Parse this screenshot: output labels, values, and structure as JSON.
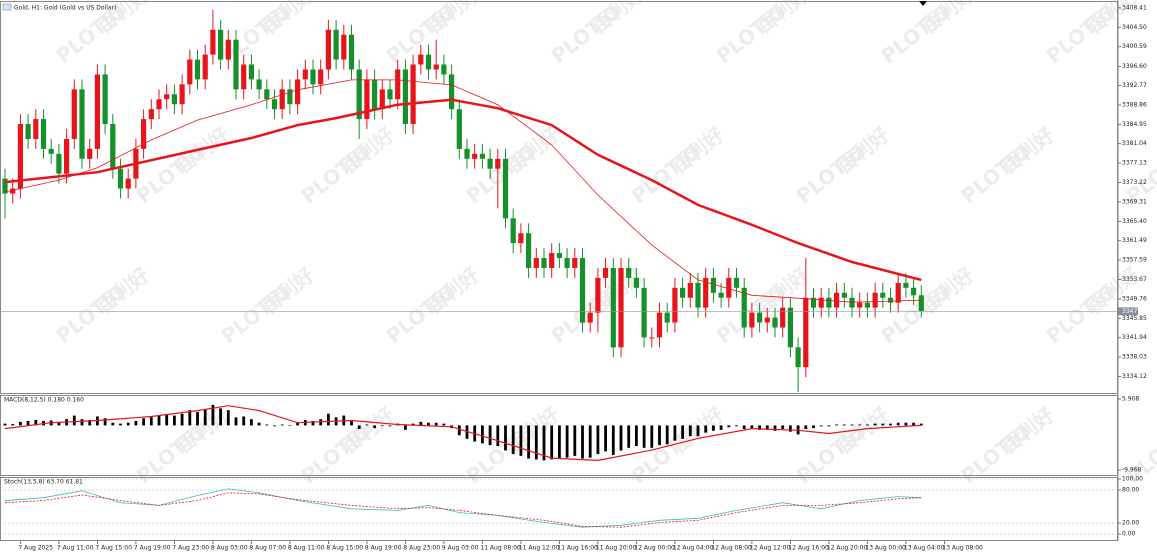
{
  "watermark": [
    "PLOTIO",
    "百利好"
  ],
  "chart_data": [
    {
      "type": "candlestick",
      "title": "Gold, H1: Gold (Gold vs US Dollar)",
      "up_color": "#e8141c",
      "down_color": "#15902a",
      "categories": [
        null,
        null,
        "7 Aug 2025",
        null,
        null,
        null,
        null,
        "7 Aug 11:00",
        null,
        null,
        null,
        null,
        "7 Aug 15:00",
        null,
        null,
        null,
        null,
        "7 Aug 19:00",
        null,
        null,
        null,
        null,
        "7 Aug 23:00",
        null,
        null,
        null,
        null,
        "8 Aug 03:00",
        null,
        null,
        null,
        null,
        "8 Aug 07:00",
        null,
        null,
        null,
        null,
        "8 Aug 11:00",
        null,
        null,
        null,
        null,
        "8 Aug 15:00",
        null,
        null,
        null,
        null,
        "8 Aug 19:00",
        null,
        null,
        null,
        null,
        "8 Aug 23:00",
        null,
        null,
        null,
        null,
        "9 Aug 03:00",
        null,
        null,
        null,
        null,
        "11 Aug 08:00",
        null,
        null,
        null,
        null,
        "11 Aug 12:00",
        null,
        null,
        null,
        null,
        "11 Aug 16:00",
        null,
        null,
        null,
        null,
        "11 Aug 20:00",
        null,
        null,
        null,
        null,
        "12 Aug 00:00",
        null,
        null,
        null,
        null,
        "12 Aug 04:00",
        null,
        null,
        null,
        null,
        "12 Aug 08:00",
        null,
        null,
        null,
        null,
        "12 Aug 12:00",
        null,
        null,
        null,
        null,
        "12 Aug 16:00",
        null,
        null,
        null,
        null,
        "12 Aug 20:00",
        null,
        null,
        null,
        null,
        "13 Aug 00:00",
        null,
        null,
        null,
        null,
        "13 Aug 04:00",
        null,
        null,
        null,
        null,
        "13 Aug 08:00"
      ],
      "open": [
        3374,
        3371,
        3372,
        3385,
        3382,
        3386,
        3380,
        3379,
        3375,
        3382,
        3392,
        3378,
        3380,
        3395,
        3385,
        3376,
        3372,
        3374,
        3380,
        3386,
        3388,
        3390,
        3391,
        3389,
        3393,
        3398,
        3394,
        3399,
        3404,
        3398,
        3402,
        3392,
        3397,
        3394,
        3392,
        3390,
        3388,
        3392,
        3389,
        3394,
        3396,
        3393,
        3396,
        3404,
        3398,
        3403,
        3396,
        3386,
        3394,
        3388,
        3392,
        3390,
        3396,
        3385,
        3397,
        3399,
        3396,
        3397,
        3395,
        3388,
        3380,
        3378,
        3379,
        3378,
        3376,
        3378,
        3366,
        3361,
        3363,
        3356,
        3358,
        3356,
        3359,
        3358,
        3356,
        3358,
        3345,
        3347,
        3354,
        3356,
        3340,
        3356,
        3354,
        3352,
        3342,
        3342,
        3347,
        3345,
        3352,
        3350,
        3353,
        3348,
        3354,
        3351,
        3350,
        3354,
        3352,
        3344,
        3347,
        3345,
        3346,
        3344,
        3348,
        3340,
        3336,
        3350,
        3348,
        3350,
        3348,
        3351,
        3350,
        3348,
        3349,
        3348,
        3351,
        3350,
        3349,
        3353,
        3352,
        3350.5,
        null,
        null,
        null
      ],
      "high": [
        3376,
        3374,
        3387,
        3387,
        3388,
        3388,
        3382,
        3381,
        3384,
        3394,
        3394,
        3382,
        3397,
        3397,
        3387,
        3378,
        3376,
        3382,
        3388,
        3390,
        3392,
        3393,
        3393,
        3395,
        3400,
        3400,
        3401,
        3408,
        3406,
        3404,
        3404,
        3399,
        3399,
        3396,
        3394,
        3392,
        3394,
        3394,
        3396,
        3398,
        3398,
        3398,
        3406,
        3406,
        3405,
        3405,
        3398,
        3396,
        3396,
        3394,
        3394,
        3398,
        3398,
        3399,
        3401,
        3401,
        3402,
        3399,
        3397,
        3390,
        3382,
        3381,
        3381,
        3380,
        3380,
        3380,
        3368,
        3365,
        3365,
        3360,
        3360,
        3361,
        3361,
        3360,
        3360,
        3360,
        3349,
        3356,
        3358,
        3358,
        3358,
        3358,
        3356,
        3354,
        3344,
        3349,
        3349,
        3354,
        3354,
        3355,
        3355,
        3356,
        3356,
        3353,
        3356,
        3356,
        3354,
        3349,
        3349,
        3348,
        3348,
        3350,
        3350,
        3342,
        3358,
        3352,
        3352,
        3352,
        3353,
        3353,
        3352,
        3351,
        3351,
        3353,
        3353,
        3352,
        3355,
        3355,
        3354,
        3352.5,
        null,
        null,
        null
      ],
      "low": [
        3366,
        3369,
        3370,
        3380,
        3380,
        3378,
        3377,
        3373,
        3373,
        3380,
        3376,
        3376,
        3378,
        3383,
        3374,
        3370,
        3370,
        3372,
        3378,
        3384,
        3386,
        3388,
        3387,
        3387,
        3391,
        3392,
        3392,
        3397,
        3396,
        3396,
        3390,
        3390,
        3392,
        3390,
        3388,
        3386,
        3386,
        3387,
        3387,
        3392,
        3391,
        3391,
        3394,
        3396,
        3396,
        3394,
        3382,
        3384,
        3386,
        3386,
        3388,
        3388,
        3383,
        3383,
        3395,
        3394,
        3394,
        3393,
        3386,
        3378,
        3376,
        3376,
        3376,
        3374,
        3368,
        3364,
        3359,
        3359,
        3354,
        3354,
        3354,
        3354,
        3356,
        3354,
        3354,
        3343,
        3343,
        3343,
        3352,
        3338,
        3338,
        3352,
        3350,
        3340,
        3340,
        3340,
        3343,
        3343,
        3348,
        3348,
        3346,
        3346,
        3349,
        3348,
        3348,
        3350,
        3342,
        3342,
        3343,
        3343,
        3342,
        3342,
        3338,
        3331,
        3334,
        3346,
        3346,
        3346,
        3346,
        3348,
        3346,
        3346,
        3346,
        3346,
        3348,
        3347,
        3347,
        3350,
        3348.5,
        3346,
        null,
        null,
        null
      ],
      "close": [
        3371,
        3372,
        3385,
        3382,
        3386,
        3380,
        3379,
        3375,
        3382,
        3392,
        3378,
        3380,
        3395,
        3385,
        3376,
        3372,
        3374,
        3380,
        3386,
        3388,
        3390,
        3391,
        3389,
        3393,
        3398,
        3394,
        3399,
        3404,
        3398,
        3402,
        3392,
        3397,
        3394,
        3392,
        3390,
        3388,
        3392,
        3389,
        3394,
        3396,
        3393,
        3396,
        3404,
        3398,
        3403,
        3396,
        3386,
        3394,
        3388,
        3392,
        3390,
        3396,
        3385,
        3397,
        3399,
        3396,
        3397,
        3395,
        3388,
        3380,
        3378,
        3379,
        3378,
        3376,
        3378,
        3366,
        3361,
        3363,
        3356,
        3358,
        3356,
        3359,
        3358,
        3356,
        3358,
        3345,
        3347,
        3354,
        3356,
        3340,
        3356,
        3354,
        3352,
        3342,
        3342,
        3347,
        3345,
        3352,
        3350,
        3353,
        3348,
        3354,
        3351,
        3350,
        3354,
        3352,
        3344,
        3347,
        3345,
        3346,
        3344,
        3348,
        3340,
        3336,
        3350,
        3348,
        3350,
        3348,
        3351,
        3350,
        3348,
        3349,
        3348,
        3351,
        3350,
        3349,
        3353,
        3352,
        3350.5,
        3347.26,
        null,
        null,
        null
      ],
      "last_price": 3347.26,
      "overlays": [
        {
          "color": "#e8141c",
          "width": 2.5,
          "x": [
            0,
            12,
            25,
            32,
            38,
            43,
            51,
            58,
            64,
            71,
            77,
            84,
            90,
            97,
            103,
            110,
            119
          ],
          "values": [
            3373.3,
            3375.3,
            3379.8,
            3382.2,
            3384.8,
            3386.2,
            3388.9,
            3389.9,
            3388.2,
            3384.8,
            3378.8,
            3373.7,
            3368.7,
            3364.7,
            3361.0,
            3357.2,
            3353.6
          ]
        },
        {
          "color": "#e8141c",
          "width": 0.8,
          "x": [
            0,
            7,
            12,
            19,
            25,
            32,
            38,
            45,
            51,
            58,
            64,
            71,
            77,
            84,
            90,
            97,
            103,
            110,
            119
          ],
          "values": [
            3371.3,
            3373.7,
            3376.2,
            3381.8,
            3385.8,
            3388.9,
            3391.9,
            3393.9,
            3393.9,
            3392.9,
            3388.9,
            3380.8,
            3370.7,
            3360.6,
            3353.6,
            3350.5,
            3349.9,
            3349.1,
            3349.5
          ]
        }
      ],
      "ylim": [
        3330.8,
        3409.6
      ],
      "yticks": [
        3408.41,
        {
          "value": 3404.5,
          "label": "3404.50"
        },
        3400.59,
        {
          "value": 3396.6,
          "label": "3396.60"
        },
        3392.77,
        3388.86,
        3384.95,
        3381.04,
        3377.13,
        3373.22,
        3369.31,
        {
          "value": 3365.4,
          "label": "3365.40"
        },
        3361.49,
        3357.59,
        3353.67,
        3349.76,
        3345.85,
        3341.94,
        3338.03,
        3334.12
      ]
    },
    {
      "type": "bar",
      "title": "MACD(8,12,5) 0.180 0.160",
      "color": "#000000",
      "values": [
        0.4,
        0.3,
        0.8,
        1.0,
        1.2,
        1.0,
        1.1,
        0.8,
        1.4,
        2.2,
        1.4,
        1.2,
        2.0,
        1.6,
        0.6,
        0.4,
        0.6,
        1.0,
        1.6,
        2.0,
        2.2,
        2.4,
        2.2,
        2.6,
        3.4,
        3.0,
        3.6,
        4.6,
        3.8,
        3.4,
        1.8,
        2.0,
        1.4,
        0.6,
        0.2,
        -0.2,
        0.2,
        0,
        0.6,
        1.2,
        1.0,
        1.4,
        2.6,
        1.8,
        2.2,
        1.2,
        -0.8,
        0.2,
        -0.6,
        0,
        -0.2,
        0.4,
        -1.0,
        0.4,
        0.8,
        0.6,
        0.6,
        0.4,
        -0.6,
        -2.2,
        -3.0,
        -3.6,
        -4.0,
        -4.4,
        -4.6,
        -5.6,
        -6.4,
        -6.8,
        -7.4,
        -7.6,
        -7.8,
        -7.6,
        -7.4,
        -7.2,
        -6.8,
        -7.4,
        -7.2,
        -6.4,
        -5.8,
        -6.6,
        -5.6,
        -5.0,
        -4.6,
        -5.0,
        -5.0,
        -4.4,
        -4.2,
        -3.4,
        -3.0,
        -2.4,
        -2.4,
        -1.6,
        -1.2,
        -1.0,
        -0.4,
        -0.2,
        -0.8,
        -0.8,
        -1.0,
        -1.0,
        -1.2,
        -0.8,
        -1.4,
        -2.0,
        -0.8,
        -0.6,
        -0.2,
        -0.2,
        0.2,
        0.2,
        0.2,
        0.2,
        0.2,
        0.4,
        0.4,
        0.4,
        0.6,
        0.6,
        0.6,
        0.4,
        null,
        null,
        null
      ],
      "overlays": [
        {
          "color": "#e8141c",
          "width": 1.2,
          "x": [
            0,
            6,
            12,
            19,
            25,
            29,
            33,
            38,
            45,
            51,
            58,
            64,
            71,
            77,
            84,
            90,
            97,
            103,
            107,
            112,
            119
          ],
          "values": [
            -0.7,
            0.6,
            1.1,
            2.0,
            3.3,
            4.4,
            3.3,
            0.6,
            1.1,
            0.2,
            -0.3,
            -3.4,
            -7.3,
            -7.8,
            -5.5,
            -2.9,
            -0.7,
            -1.1,
            -1.8,
            -0.7,
            0
          ]
        }
      ],
      "ylim": [
        -11.07,
        6.57
      ],
      "yticks": [
        5.908,
        -9.968
      ]
    },
    {
      "type": "line",
      "title": "Stoch(13,5,8) 63.70 61.81",
      "series": [
        {
          "color": "#3cb8c4",
          "dash": false,
          "x": [
            0,
            5,
            10,
            15,
            20,
            25,
            29,
            33,
            38,
            45,
            51,
            55,
            59,
            64,
            70,
            75,
            80,
            85,
            90,
            95,
            101,
            106,
            111,
            116,
            119
          ],
          "values": [
            60.7,
            66,
            78.6,
            57,
            52,
            70,
            82,
            75,
            61,
            46,
            43,
            52,
            39,
            34,
            21,
            12.5,
            16,
            25,
            28.6,
            43,
            57,
            46,
            61,
            68,
            66
          ]
        },
        {
          "color": "#e8141c",
          "dash": true,
          "x": [
            0,
            5,
            10,
            15,
            20,
            25,
            29,
            33,
            38,
            45,
            51,
            55,
            59,
            64,
            70,
            75,
            80,
            85,
            90,
            95,
            101,
            106,
            111,
            116,
            119
          ],
          "values": [
            57,
            61,
            71,
            61,
            52,
            61,
            75,
            73,
            62.5,
            52,
            46,
            48,
            43,
            34,
            25,
            14,
            12.5,
            21,
            25,
            39,
            52,
            52,
            57,
            64,
            66
          ]
        }
      ],
      "ylim": [
        -10.7,
        101.8
      ],
      "yticks": [
        {
          "value": 100,
          "label": "100.00"
        },
        {
          "value": 80,
          "label": "80.00"
        },
        {
          "value": 20,
          "label": "20.00"
        },
        {
          "value": 0,
          "label": "0.00"
        }
      ]
    }
  ]
}
